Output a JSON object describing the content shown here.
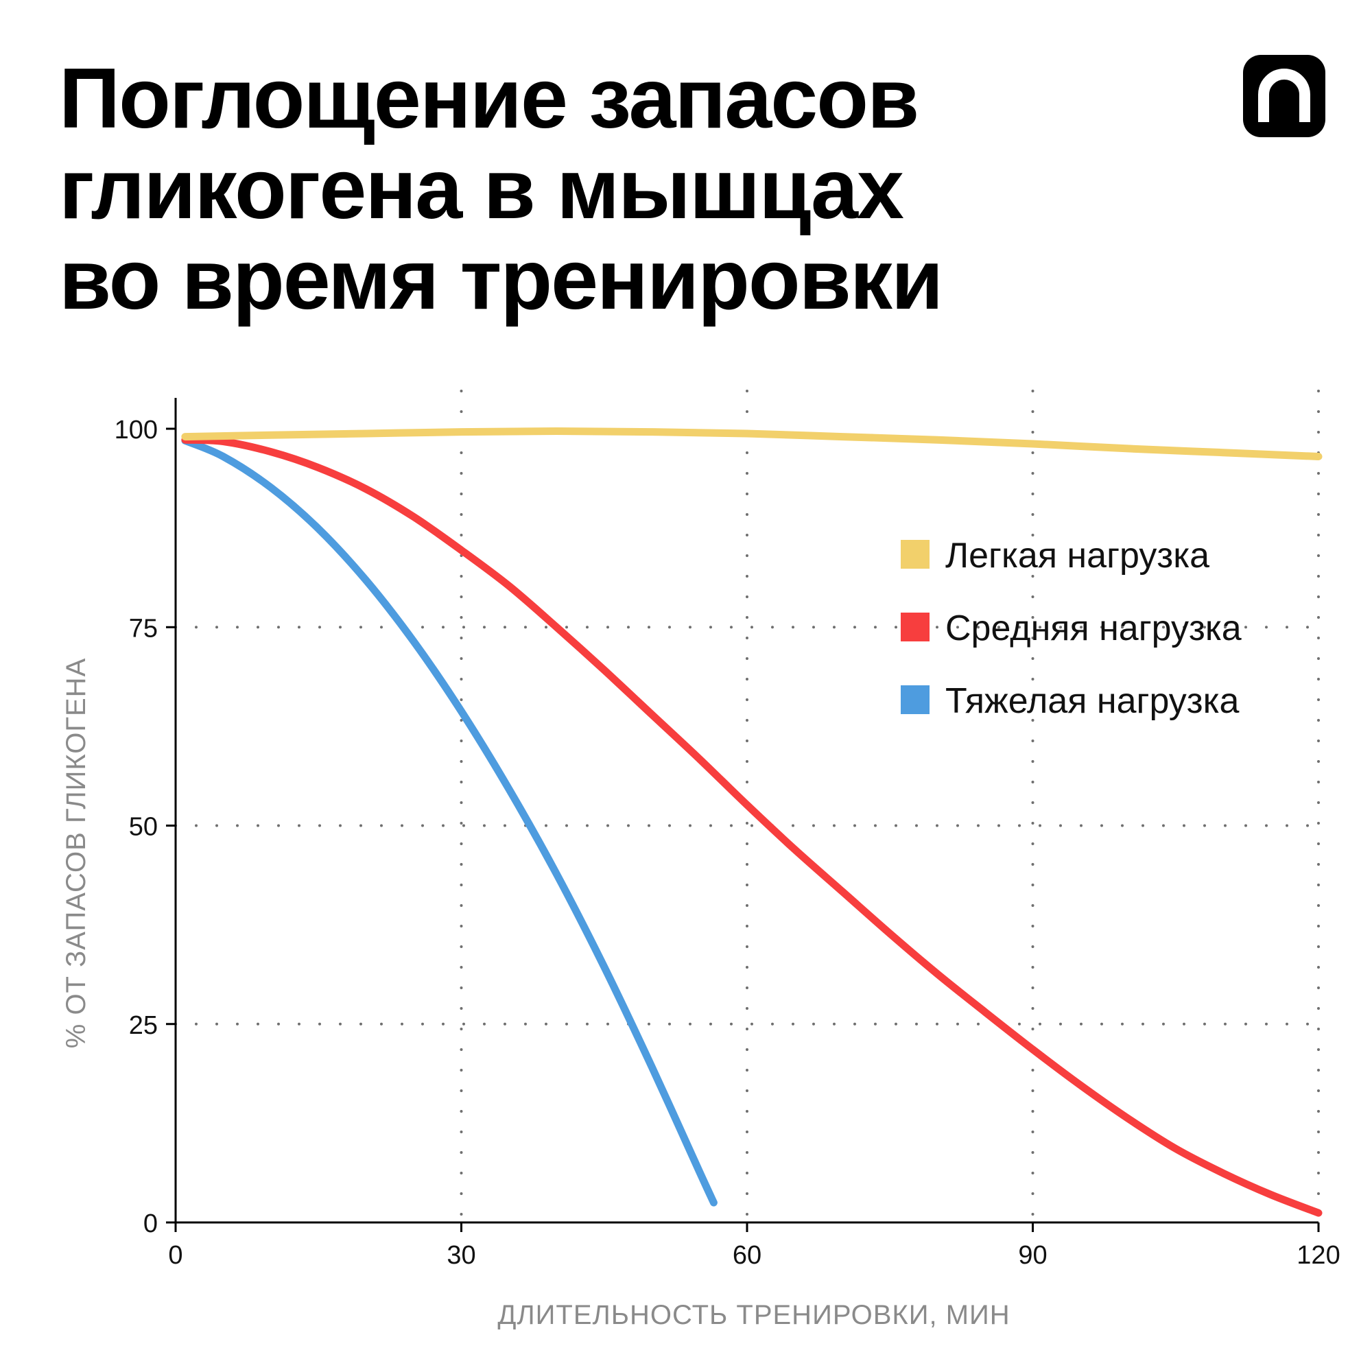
{
  "title_lines": [
    "Поглощение запасов",
    "гликогена в мышцах",
    "во время тренировки"
  ],
  "logo": {
    "icon": "arch-logo-icon",
    "color": "#000000"
  },
  "chart_data": {
    "type": "line",
    "xlabel": "ДЛИТЕЛЬНОСТЬ ТРЕНИРОВКИ, МИН",
    "ylabel": "% ОТ ЗАПАСОВ ГЛИКОГЕНА",
    "xlim": [
      0,
      120
    ],
    "ylim": [
      0,
      100
    ],
    "xticks": [
      0,
      30,
      60,
      90,
      120
    ],
    "yticks": [
      0,
      25,
      50,
      75,
      100
    ],
    "grid": "dotted",
    "legend_position": "top-right",
    "series": [
      {
        "name": "Легкая нагрузка",
        "color": "#f2d06b",
        "x": [
          1,
          10,
          20,
          30,
          40,
          50,
          60,
          70,
          80,
          90,
          100,
          110,
          120
        ],
        "y": [
          99,
          99.2,
          99.4,
          99.6,
          99.7,
          99.6,
          99.4,
          99.0,
          98.6,
          98.1,
          97.5,
          97.0,
          96.5
        ]
      },
      {
        "name": "Средняя нагрузка",
        "color": "#f73e3e",
        "x": [
          1,
          5,
          10,
          15,
          20,
          25,
          30,
          35,
          40,
          45,
          50,
          55,
          60,
          65,
          70,
          75,
          80,
          85,
          90,
          95,
          100,
          105,
          110,
          115,
          120
        ],
        "y": [
          98.6,
          98.4,
          97.1,
          95.1,
          92.4,
          88.9,
          84.7,
          80.2,
          75.0,
          69.6,
          64.0,
          58.4,
          52.6,
          47.0,
          41.7,
          36.4,
          31.3,
          26.5,
          21.8,
          17.3,
          13.1,
          9.3,
          6.2,
          3.5,
          1.2
        ]
      },
      {
        "name": "Тяжелая нагрузка",
        "color": "#4e9cdf",
        "x": [
          1,
          5,
          10,
          15,
          20,
          25,
          30,
          35,
          40,
          45,
          50,
          55,
          56.5
        ],
        "y": [
          98.5,
          96.5,
          92.6,
          87.4,
          80.9,
          73.2,
          64.4,
          54.6,
          43.9,
          32.2,
          19.6,
          6.4,
          2.5
        ]
      }
    ]
  }
}
